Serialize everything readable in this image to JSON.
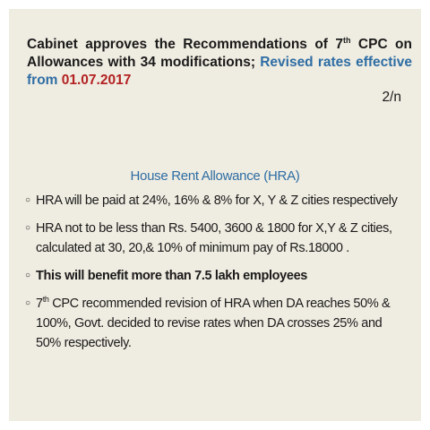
{
  "header": {
    "line1_a": "Cabinet approves the Recommendations of 7",
    "line1_sup": "th",
    "line1_b": " CPC on",
    "line2_a": "Allowances with 34 modifications; ",
    "line2_b": "Revised rates effective",
    "line3_a": "from ",
    "line3_date": "01.07.2017",
    "page_number": "2/n"
  },
  "section": {
    "title": "House Rent Allowance (HRA)"
  },
  "bullet_marker": "○",
  "bullets": [
    {
      "text": "HRA will be paid at 24%, 16% & 8% for X, Y & Z cities respectively"
    },
    {
      "text_a": "HRA not to be less than Rs. 5400, 3600 & 1800 for X,Y & Z cities,",
      "text_b": "calculated at 30, 20,& 10% of minimum pay of Rs.18000 ."
    },
    {
      "text": "This will benefit more than 7.5 lakh employees"
    },
    {
      "text_pre": "7",
      "text_sup": "th",
      "text_a": " CPC recommended revision of HRA when DA reaches 50% &",
      "text_b": "100%, Govt. decided to revise rates when DA crosses 25% and",
      "text_c": "50% respectively."
    }
  ],
  "colors": {
    "background": "#efece1",
    "accent_blue": "#2e6da4",
    "accent_red": "#b32222"
  }
}
